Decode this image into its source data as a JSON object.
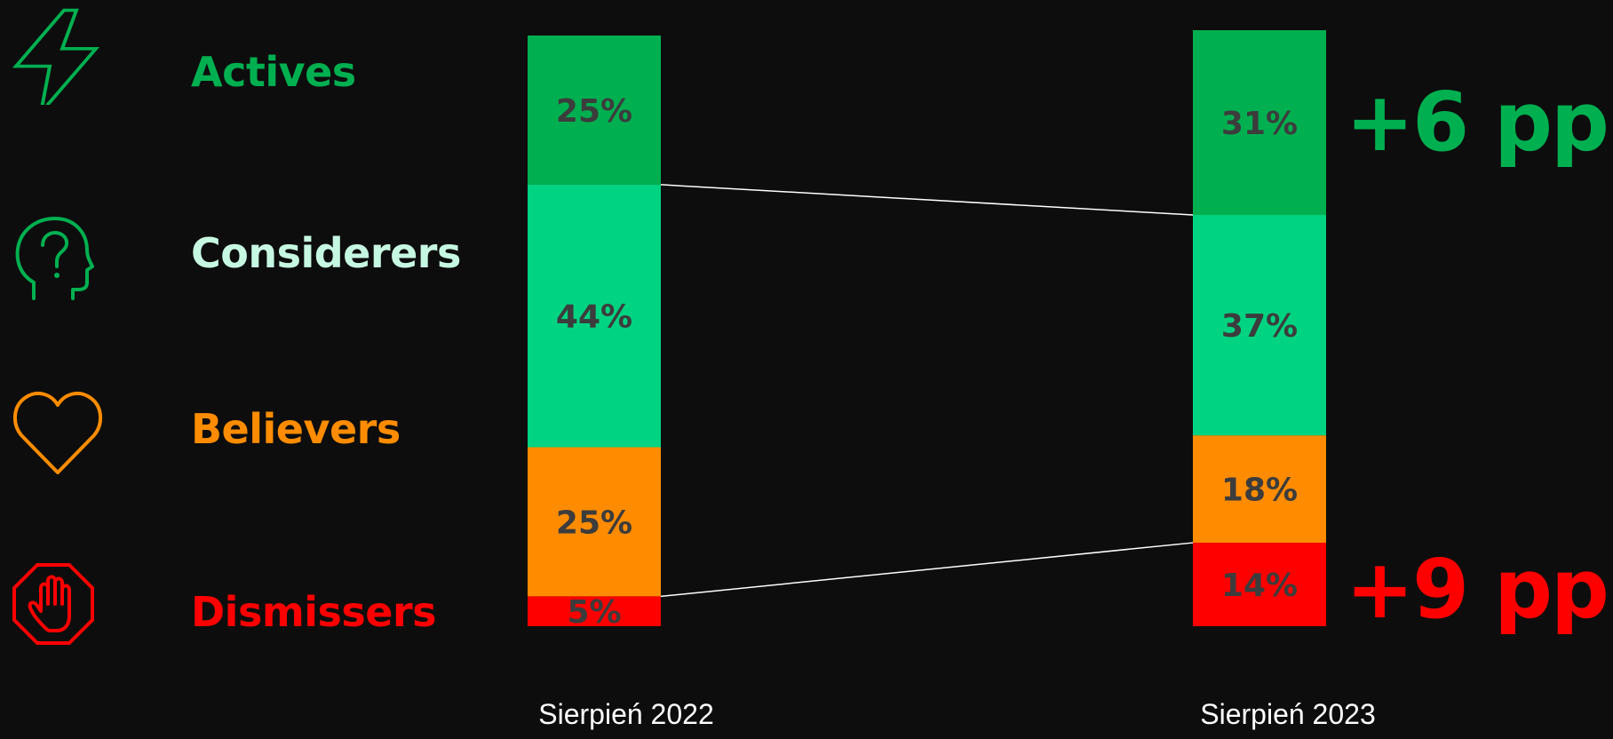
{
  "legend": [
    {
      "label": "Actives",
      "icon": "lightning-bolt-icon",
      "color": "#00b050"
    },
    {
      "label": "Considerers",
      "icon": "head-question-icon",
      "color": "#c6f7e2"
    },
    {
      "label": "Believers",
      "icon": "heart-icon",
      "color": "#ff8c00"
    },
    {
      "label": "Dismissers",
      "icon": "stop-hand-icon",
      "color": "#ff0000"
    }
  ],
  "changes": {
    "actives": {
      "text": "+6 pp.",
      "color": "#00b050"
    },
    "dismissers": {
      "text": "+9 pp.",
      "color": "#ff0000"
    }
  },
  "chart_data": {
    "type": "bar",
    "stacked": true,
    "categories": [
      "Sierpień 2022",
      "Sierpień 2023"
    ],
    "series": [
      {
        "name": "Actives",
        "color": "#00b050",
        "values": [
          25,
          31
        ],
        "labels": [
          "25%",
          "31%"
        ]
      },
      {
        "name": "Considerers",
        "color": "#00d482",
        "values": [
          44,
          37
        ],
        "labels": [
          "44%",
          "37%"
        ]
      },
      {
        "name": "Believers",
        "color": "#ff8c00",
        "values": [
          25,
          18
        ],
        "labels": [
          "25%",
          "18%"
        ]
      },
      {
        "name": "Dismissers",
        "color": "#ff0000",
        "values": [
          5,
          14
        ],
        "labels": [
          "5%",
          "14%"
        ]
      }
    ],
    "title": "",
    "xlabel": "",
    "ylabel": ""
  }
}
